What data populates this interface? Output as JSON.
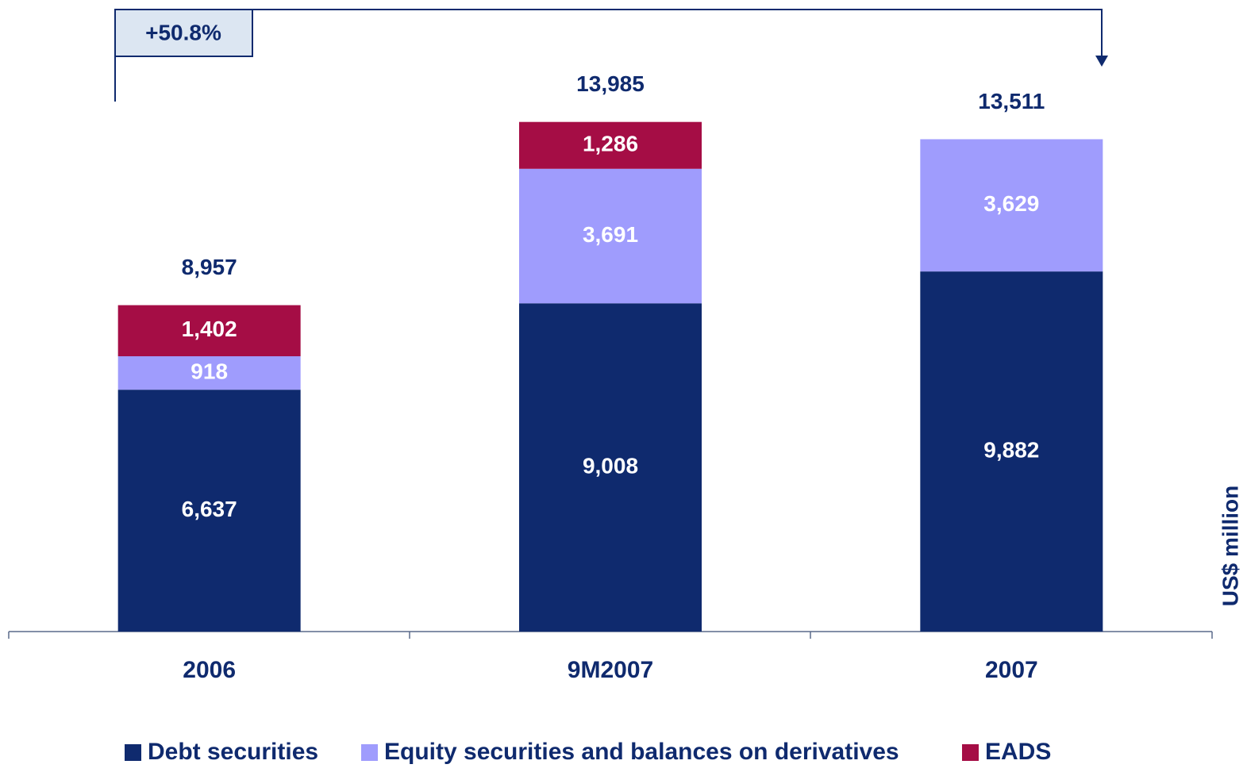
{
  "chart_data": {
    "type": "stacked_bar",
    "categories": [
      "2006",
      "9M2007",
      "2007"
    ],
    "series": [
      {
        "name": "Debt securities",
        "color": "#0f2a6e",
        "values": [
          6637,
          9008,
          9882
        ],
        "value_labels": [
          "6,637",
          "9,008",
          "9,882"
        ]
      },
      {
        "name": "Equity securities and balances on derivatives",
        "color": "#9f9cfd",
        "values": [
          918,
          3691,
          3629
        ],
        "value_labels": [
          "918",
          "3,691",
          "3,629"
        ]
      },
      {
        "name": "EADS",
        "color": "#a50d45",
        "values": [
          1402,
          1286,
          null
        ],
        "value_labels": [
          "1,402",
          "1,286",
          null
        ]
      }
    ],
    "totals": [
      8957,
      13985,
      13511
    ],
    "total_labels": [
      "8,957",
      "13,985",
      "13,511"
    ],
    "annotation": "+50.8%",
    "y_label": "US$ million",
    "ylim": [
      0,
      14000
    ]
  }
}
